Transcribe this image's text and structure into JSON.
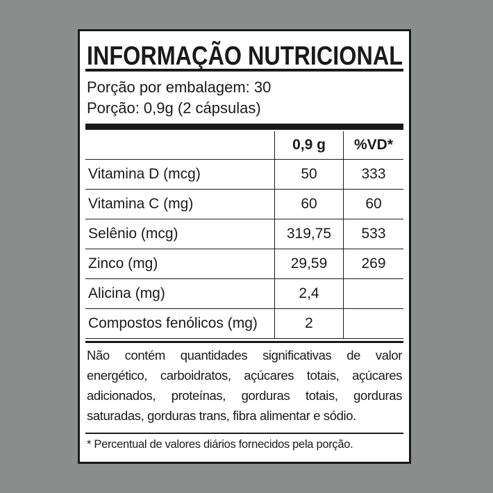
{
  "header": {
    "title": "INFORMAÇÃO NUTRICIONAL"
  },
  "serving": [
    "Porção por embalagem: 30",
    "Porção: 0,9g (2 cápsulas)"
  ],
  "table": {
    "columns": [
      "0,9 g",
      "%VD*"
    ],
    "rows": [
      [
        "Vitamina D (mcg)",
        "50",
        "333"
      ],
      [
        "Vitamina C (mg)",
        "60",
        "60"
      ],
      [
        "Selênio (mcg)",
        "319,75",
        "533"
      ],
      [
        "Zinco (mg)",
        "29,59",
        "269"
      ],
      [
        "Alicina (mg)",
        "2,4"
      ],
      [
        "Compostos fenólicos (mg)",
        "2"
      ]
    ]
  },
  "note": "Não contém quantidades significativas de valor energético, carboidratos, açúcares totais, açúcares adicionados, proteínas, gorduras totais, gorduras saturadas, gorduras trans, fibra alimentar e sódio.",
  "footnote": "* Percentual de valores diários fornecidos pela porção."
}
